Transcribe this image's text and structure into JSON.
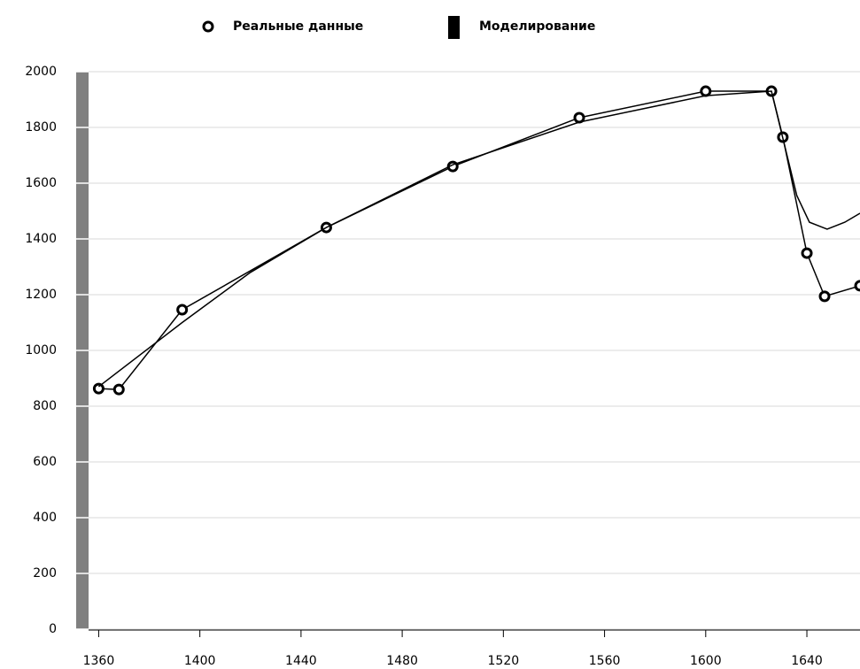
{
  "chart_data": {
    "type": "line",
    "series": [
      {
        "name": "Реальные данные",
        "color": "#000000",
        "marker": "circle",
        "x": [
          1360,
          1368,
          1393,
          1450,
          1500,
          1550,
          1600,
          1626,
          1630.5,
          1640,
          1647,
          1661
        ],
        "values": [
          863,
          860,
          1146,
          1441,
          1660,
          1835,
          1930,
          1930,
          1765,
          1349,
          1194,
          1232
        ]
      },
      {
        "name": "Моделирование",
        "color": "#000000",
        "marker": "rect",
        "x": [
          1360,
          1393,
          1420,
          1450,
          1500,
          1550,
          1600,
          1626,
          1630,
          1636,
          1641,
          1648,
          1655,
          1661
        ],
        "values": [
          870,
          1100,
          1280,
          1441,
          1666,
          1819,
          1914,
          1930,
          1780,
          1556,
          1460,
          1435,
          1460,
          1492
        ]
      }
    ],
    "xlim": [
      1356,
      1661
    ],
    "xticks": [
      1360,
      1400,
      1440,
      1480,
      1520,
      1560,
      1600,
      1640
    ],
    "ylim": [
      0,
      2000
    ],
    "yticks": [
      0,
      200,
      400,
      600,
      800,
      1000,
      1200,
      1400,
      1600,
      1800,
      2000
    ],
    "grid": true,
    "legend": "top"
  }
}
